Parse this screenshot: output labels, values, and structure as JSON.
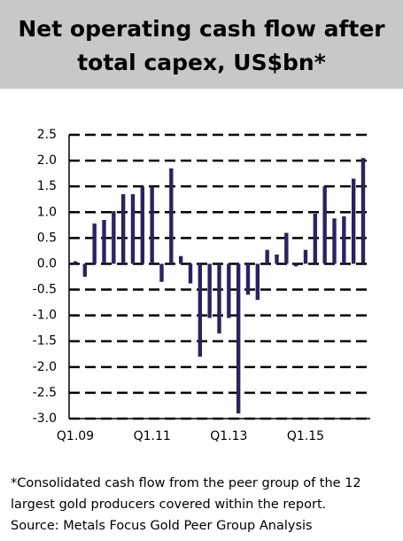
{
  "chart_data": {
    "type": "bar",
    "title": "Net operating cash flow after total capex, US$bn*",
    "note": "*Consolidated cash flow from the peer group of the 12 largest gold producers covered within the report.",
    "source": "Source: Metals Focus Gold Peer Group Analysis",
    "categories": [
      "Q1.09",
      null,
      null,
      null,
      null,
      null,
      null,
      null,
      "Q1.11",
      null,
      null,
      null,
      null,
      null,
      null,
      null,
      "Q1.13",
      null,
      null,
      null,
      null,
      null,
      null,
      null,
      "Q1.15",
      null,
      null,
      null,
      null,
      null,
      null
    ],
    "values": [
      0.05,
      -0.25,
      0.78,
      0.85,
      1.02,
      1.35,
      1.35,
      1.5,
      1.5,
      -0.35,
      1.85,
      0.15,
      -0.38,
      -1.8,
      -1.05,
      -1.35,
      -1.05,
      -2.9,
      -0.6,
      -0.7,
      0.27,
      0.18,
      0.6,
      -0.05,
      0.27,
      0.97,
      1.5,
      0.88,
      0.92,
      1.65,
      2.05
    ],
    "color": "#2a2360",
    "ylim": [
      -3.0,
      2.5
    ],
    "yticks": [
      2.5,
      {
        "value": 2.0,
        "label": "2.0"
      },
      1.5,
      {
        "value": 1.0,
        "label": "1.0"
      },
      0.5,
      {
        "value": 0.0,
        "label": "0.0"
      },
      -0.5,
      {
        "value": -1.0,
        "label": "-1.0"
      },
      -1.5,
      {
        "value": -2.0,
        "label": "-2.0"
      },
      -2.5,
      {
        "value": -3.0,
        "label": "-3.0"
      }
    ],
    "grid": true
  }
}
